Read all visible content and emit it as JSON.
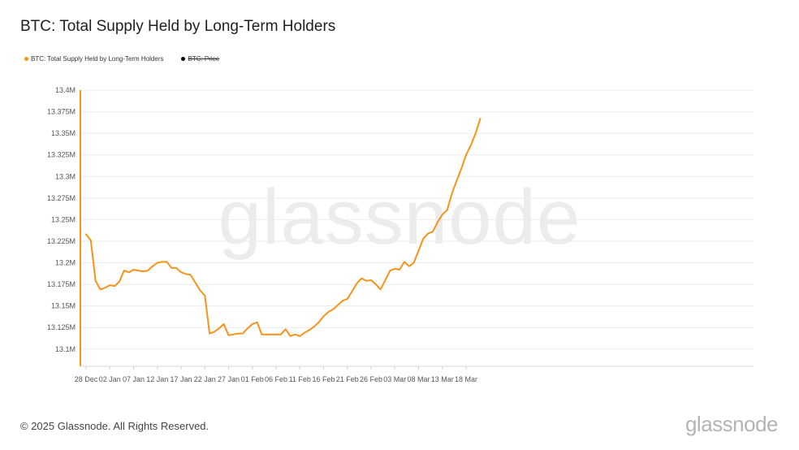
{
  "header": {
    "title": "BTC: Total Supply Held by Long-Term Holders"
  },
  "legend": [
    {
      "label": "BTC: Total Supply Held by Long-Term Holders",
      "color": "#f7931a",
      "active": true
    },
    {
      "label": "BTC: Price",
      "color": "#000000",
      "active": false
    }
  ],
  "footer": {
    "copyright": "© 2025 Glassnode. All Rights Reserved.",
    "brand": "glassnode"
  },
  "watermark": "glassnode",
  "chart_data": {
    "type": "line",
    "title": "BTC: Total Supply Held by Long-Term Holders",
    "xlabel": "",
    "ylabel": "",
    "line_color": "#f7931a",
    "grid": true,
    "legend_position": "top-left",
    "ylim": [
      13.08,
      13.4
    ],
    "y_ticks": [
      13.1,
      13.125,
      13.15,
      13.175,
      13.2,
      13.225,
      13.25,
      13.275,
      13.3,
      13.325,
      13.35,
      13.375,
      13.4
    ],
    "y_tick_labels": [
      "13.1M",
      "13.125M",
      "13.15M",
      "13.175M",
      "13.2M",
      "13.225M",
      "13.25M",
      "13.275M",
      "13.3M",
      "13.325M",
      "13.35M",
      "13.375M",
      "13.4M"
    ],
    "x_ticks": [
      {
        "x": "2024-12-28",
        "label": "28 Dec"
      },
      {
        "x": "2025-01-02",
        "label": "02 Jan"
      },
      {
        "x": "2025-01-07",
        "label": "07 Jan"
      },
      {
        "x": "2025-01-12",
        "label": "12 Jan"
      },
      {
        "x": "2025-01-17",
        "label": "17 Jan"
      },
      {
        "x": "2025-01-22",
        "label": "22 Jan"
      },
      {
        "x": "2025-01-27",
        "label": "27 Jan"
      },
      {
        "x": "2025-02-01",
        "label": "01 Feb"
      },
      {
        "x": "2025-02-06",
        "label": "06 Feb"
      },
      {
        "x": "2025-02-11",
        "label": "11 Feb"
      },
      {
        "x": "2025-02-16",
        "label": "16 Feb"
      },
      {
        "x": "2025-02-21",
        "label": "21 Feb"
      },
      {
        "x": "2025-02-26",
        "label": "26 Feb"
      },
      {
        "x": "2025-03-03",
        "label": "03 Mar"
      },
      {
        "x": "2025-03-08",
        "label": "08 Mar"
      },
      {
        "x": "2025-03-13",
        "label": "13 Mar"
      },
      {
        "x": "2025-03-18",
        "label": "18 Mar"
      }
    ],
    "series": [
      {
        "name": "BTC: Total Supply Held by Long-Term Holders",
        "x": [
          "2024-12-28",
          "2024-12-29",
          "2024-12-30",
          "2024-12-31",
          "2025-01-01",
          "2025-01-02",
          "2025-01-03",
          "2025-01-04",
          "2025-01-05",
          "2025-01-06",
          "2025-01-07",
          "2025-01-08",
          "2025-01-09",
          "2025-01-10",
          "2025-01-11",
          "2025-01-12",
          "2025-01-13",
          "2025-01-14",
          "2025-01-15",
          "2025-01-16",
          "2025-01-17",
          "2025-01-18",
          "2025-01-19",
          "2025-01-20",
          "2025-01-21",
          "2025-01-22",
          "2025-01-23",
          "2025-01-24",
          "2025-01-25",
          "2025-01-26",
          "2025-01-27",
          "2025-01-28",
          "2025-01-29",
          "2025-01-30",
          "2025-01-31",
          "2025-02-01",
          "2025-02-02",
          "2025-02-03",
          "2025-02-04",
          "2025-02-05",
          "2025-02-06",
          "2025-02-07",
          "2025-02-08",
          "2025-02-09",
          "2025-02-10",
          "2025-02-11",
          "2025-02-12",
          "2025-02-13",
          "2025-02-14",
          "2025-02-15",
          "2025-02-16",
          "2025-02-17",
          "2025-02-18",
          "2025-02-19",
          "2025-02-20",
          "2025-02-21",
          "2025-02-22",
          "2025-02-23",
          "2025-02-24",
          "2025-02-25",
          "2025-02-26",
          "2025-02-27",
          "2025-02-28",
          "2025-03-01",
          "2025-03-02",
          "2025-03-03",
          "2025-03-04",
          "2025-03-05",
          "2025-03-06",
          "2025-03-07",
          "2025-03-08",
          "2025-03-09",
          "2025-03-10",
          "2025-03-11",
          "2025-03-12",
          "2025-03-13",
          "2025-03-14",
          "2025-03-15",
          "2025-03-16",
          "2025-03-17",
          "2025-03-18",
          "2025-03-19",
          "2025-03-20",
          "2025-03-21"
        ],
        "values": [
          13.233,
          13.226,
          13.179,
          13.169,
          13.171,
          13.174,
          13.173,
          13.178,
          13.191,
          13.189,
          13.192,
          13.191,
          13.19,
          13.191,
          13.196,
          13.2,
          13.201,
          13.201,
          13.194,
          13.194,
          13.189,
          13.187,
          13.186,
          13.177,
          13.168,
          13.162,
          13.118,
          13.12,
          13.124,
          13.129,
          13.116,
          13.117,
          13.118,
          13.118,
          13.124,
          13.129,
          13.131,
          13.117,
          13.117,
          13.117,
          13.117,
          13.117,
          13.123,
          13.115,
          13.117,
          13.115,
          13.119,
          13.122,
          13.126,
          13.131,
          13.138,
          13.143,
          13.146,
          13.151,
          13.156,
          13.158,
          13.167,
          13.176,
          13.182,
          13.179,
          13.18,
          13.175,
          13.169,
          13.18,
          13.191,
          13.193,
          13.192,
          13.201,
          13.196,
          13.2,
          13.214,
          13.228,
          13.234,
          13.236,
          13.247,
          13.256,
          13.261,
          13.28,
          13.295,
          13.309,
          13.325,
          13.336,
          13.35,
          13.367
        ]
      }
    ]
  }
}
